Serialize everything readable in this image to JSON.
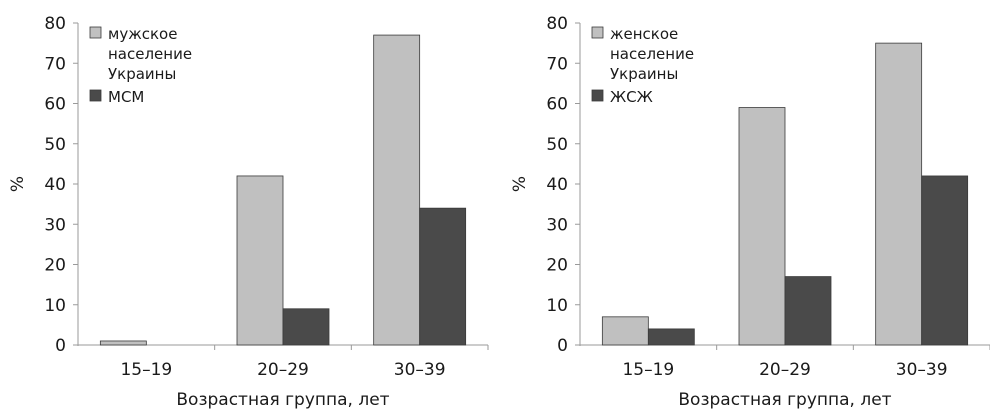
{
  "chart_data": [
    {
      "type": "bar",
      "categories": [
        "15–19",
        "20–29",
        "30–39"
      ],
      "series": [
        {
          "name": "мужское население Украины",
          "legend_lines": [
            "мужское",
            "население",
            "Украины"
          ],
          "color": "#c0c0c0",
          "values": [
            1,
            42,
            77
          ]
        },
        {
          "name": "МСМ",
          "legend_lines": [
            "МСМ"
          ],
          "color": "#4a4a4a",
          "values": [
            0,
            9,
            34
          ]
        }
      ],
      "ylim": [
        0,
        80
      ],
      "yticks": [
        0,
        10,
        20,
        30,
        40,
        50,
        60,
        70,
        80
      ],
      "xlabel": "Возрастная группа, лет",
      "ylabel": "%",
      "grid": false,
      "legend": "top-left"
    },
    {
      "type": "bar",
      "categories": [
        "15–19",
        "20–29",
        "30–39"
      ],
      "series": [
        {
          "name": "женское население Украины",
          "legend_lines": [
            "женское",
            "население",
            "Украины"
          ],
          "color": "#c0c0c0",
          "values": [
            7,
            59,
            75
          ]
        },
        {
          "name": "ЖСЖ",
          "legend_lines": [
            "ЖСЖ"
          ],
          "color": "#4a4a4a",
          "values": [
            4,
            17,
            42
          ]
        }
      ],
      "ylim": [
        0,
        80
      ],
      "yticks": [
        0,
        10,
        20,
        30,
        40,
        50,
        60,
        70,
        80
      ],
      "xlabel": "Возрастная группа, лет",
      "ylabel": "%",
      "grid": false,
      "legend": "top-left"
    }
  ]
}
